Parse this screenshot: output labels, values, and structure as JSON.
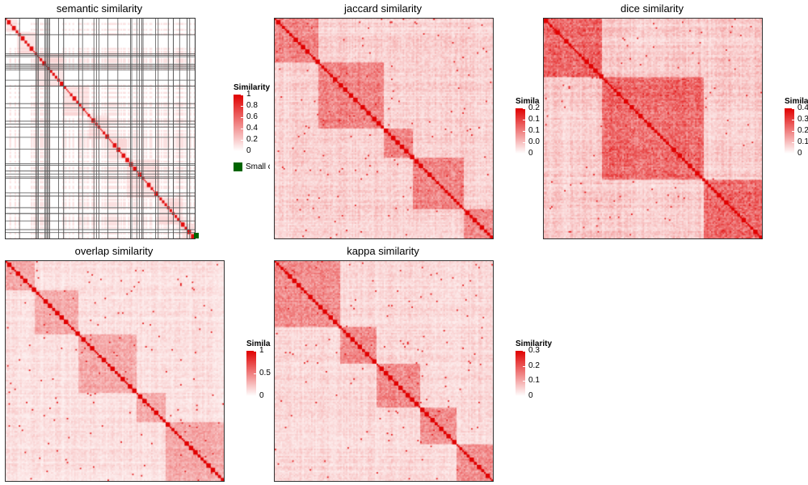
{
  "chart_data": [
    {
      "type": "heatmap",
      "title": "semantic similarity",
      "n": 150,
      "max_similarity": 1,
      "grouped_blocks": true,
      "blocks": [
        9,
        15,
        22,
        20,
        16,
        14,
        26,
        18,
        10
      ],
      "legend": {
        "title": "Similarity",
        "ticks": [
          "1",
          "0.8",
          "0.6",
          "0.4",
          "0.2",
          "0"
        ],
        "extra_label": "Small clusters"
      }
    },
    {
      "type": "heatmap",
      "title": "jaccard similarity",
      "n": 150,
      "max_similarity": 0.2,
      "legend": {
        "title": "Similarity",
        "ticks": [
          "0.2",
          "0.15",
          "0.1",
          "0.05",
          "0"
        ]
      }
    },
    {
      "type": "heatmap",
      "title": "dice similarity",
      "n": 150,
      "max_similarity": 0.4,
      "legend": {
        "title": "Similarity",
        "ticks": [
          "0.4",
          "0.3",
          "0.2",
          "0.1",
          "0"
        ]
      }
    },
    {
      "type": "heatmap",
      "title": "overlap similarity",
      "n": 150,
      "max_similarity": 1,
      "legend": {
        "title": "Similarity",
        "ticks": [
          "1",
          "0.5",
          "0"
        ]
      }
    },
    {
      "type": "heatmap",
      "title": "kappa similarity",
      "n": 150,
      "max_similarity": 0.3,
      "legend": {
        "title": "Similarity",
        "ticks": [
          "0.3",
          "0.2",
          "0.1",
          "0"
        ]
      }
    }
  ],
  "colors": {
    "high": "#e00000",
    "low": "#ffffff",
    "small_clusters": "#006400",
    "border": "#333333"
  }
}
